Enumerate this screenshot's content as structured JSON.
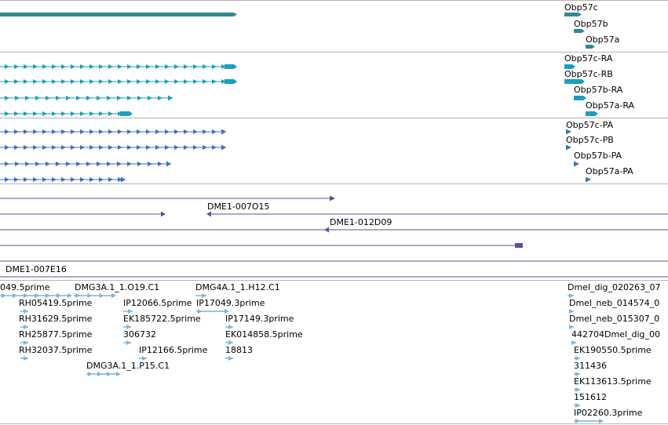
{
  "colors": {
    "gene": "#2f8a8e",
    "transcript": "#1a9fc0",
    "protein": "#3a6fc4",
    "clone": "#6a4a9a",
    "est": "#7fb3dc",
    "separator": "#b5b5b5"
  },
  "tracks": {
    "genes": {
      "labels": [
        "Obp57c",
        "Obp57b",
        "Obp57a"
      ]
    },
    "transcripts": {
      "labels": [
        "Obp57c-RA",
        "Obp57c-RB",
        "Obp57b-RA",
        "Obp57a-RA"
      ]
    },
    "proteins": {
      "labels": [
        "Obp57c-PA",
        "Obp57c-PB",
        "Obp57b-PA",
        "Obp57a-PA"
      ]
    },
    "clones": {
      "labels": [
        "DME1-007O15",
        "DME1-012D09",
        "DME1-007E16"
      ]
    },
    "ests": {
      "labels": [
        "049.5prime",
        "RH05419.5prime",
        "RH31629.5prime",
        "RH25877.5prime",
        "RH32037.5prime",
        "DMG3A.1_1.O19.C1",
        "DMG3A.1_1.P15.C1",
        "IP12066.5prime",
        "EK185722.5prime",
        "306732",
        "IP12166.5prime",
        "DMG4A.1_1.H12.C1",
        "IP17049.3prime",
        "IP17149.3prime",
        "EK014858.5prime",
        "18813",
        "Dmel_dig_020263_07",
        "Dmel_neb_014574_0",
        "Dmel_neb_015307_0",
        "442704Dmel_dig_00",
        "EK190550.5prime",
        "311436",
        "EK113613.5prime",
        "151612",
        "IP02260.3prime"
      ]
    }
  }
}
